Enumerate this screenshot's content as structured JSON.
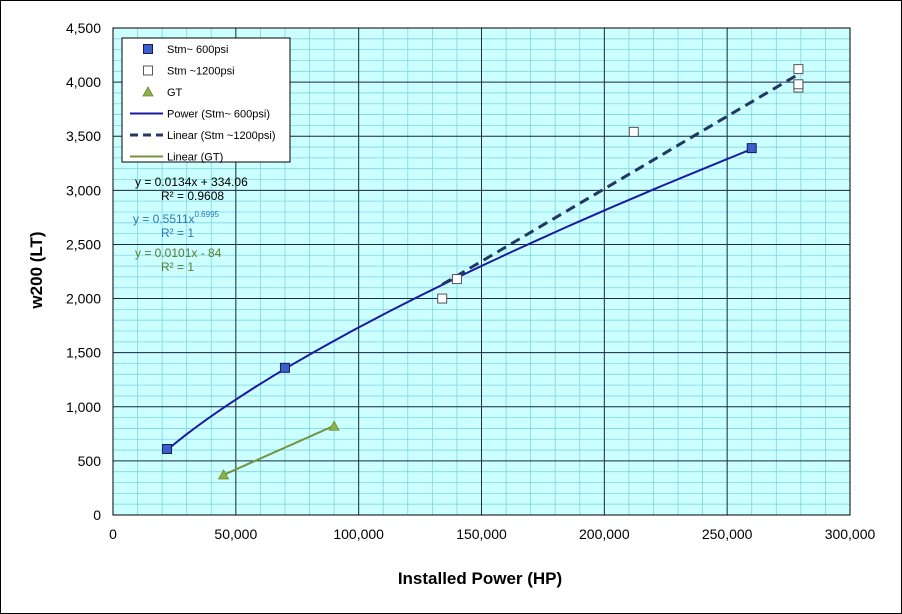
{
  "chart_data": {
    "type": "scatter",
    "xlabel": "Installed Power (HP)",
    "ylabel": "w200 (LT)",
    "xlim": [
      0,
      300000
    ],
    "ylim": [
      0,
      4500
    ],
    "x_major_step": 50000,
    "y_major_step": 500,
    "x_minor_step": 10000,
    "y_minor_step": 100,
    "x_tick_labels": [
      "0",
      "50,000",
      "100,000",
      "150,000",
      "200,000",
      "250,000",
      "300,000"
    ],
    "y_tick_labels": [
      "0",
      "500",
      "1,000",
      "1,500",
      "2,000",
      "2,500",
      "3,000",
      "3,500",
      "4,000",
      "4,500"
    ],
    "grid": true,
    "plot_background": "#ccffff",
    "legend_placement": "top-left",
    "series": [
      {
        "name": "Stm~ 600psi",
        "marker": "square",
        "color": "#3a5fcd",
        "points": [
          [
            22000,
            610
          ],
          [
            70000,
            1360
          ],
          [
            260000,
            3390
          ]
        ]
      },
      {
        "name": "Stm ~1200psi",
        "marker": "square-open",
        "color": "#ffffff",
        "points": [
          [
            134000,
            2000
          ],
          [
            140000,
            2180
          ],
          [
            212000,
            3540
          ],
          [
            279000,
            3950
          ],
          [
            279000,
            3980
          ],
          [
            279000,
            4120
          ]
        ]
      },
      {
        "name": "GT",
        "marker": "triangle",
        "color": "#8db04b",
        "points": [
          [
            45000,
            370
          ],
          [
            90000,
            820
          ]
        ]
      }
    ],
    "trendlines": [
      {
        "name": "Power (Stm~ 600psi)",
        "kind": "power",
        "a": 0.5511,
        "b": 0.6995,
        "x_range": [
          22000,
          260000
        ],
        "color": "#1a1aa6",
        "dash": "solid"
      },
      {
        "name": "Linear (Stm ~1200psi)",
        "kind": "linear",
        "slope": 0.0134,
        "intercept": 334.06,
        "x_range": [
          134000,
          279000
        ],
        "color": "#1f3864",
        "dash": "dashed"
      },
      {
        "name": "Linear (GT)",
        "kind": "linear",
        "slope": 0.0101,
        "intercept": -84,
        "x_range": [
          45000,
          90000
        ],
        "color": "#77933c",
        "dash": "solid"
      }
    ],
    "annotations": [
      {
        "text": "y = 0.0134x + 334.06",
        "color": "#000000"
      },
      {
        "text": "R² = 0.9608",
        "color": "#000000"
      },
      {
        "text": "y = 0.5511x",
        "superscript": "0.6995",
        "color": "#2e75b6"
      },
      {
        "text": "R² = 1",
        "color": "#2e75b6"
      },
      {
        "text": "y = 0.0101x - 84",
        "color": "#5f7a2a"
      },
      {
        "text": "R² = 1",
        "color": "#5f7a2a"
      }
    ]
  }
}
